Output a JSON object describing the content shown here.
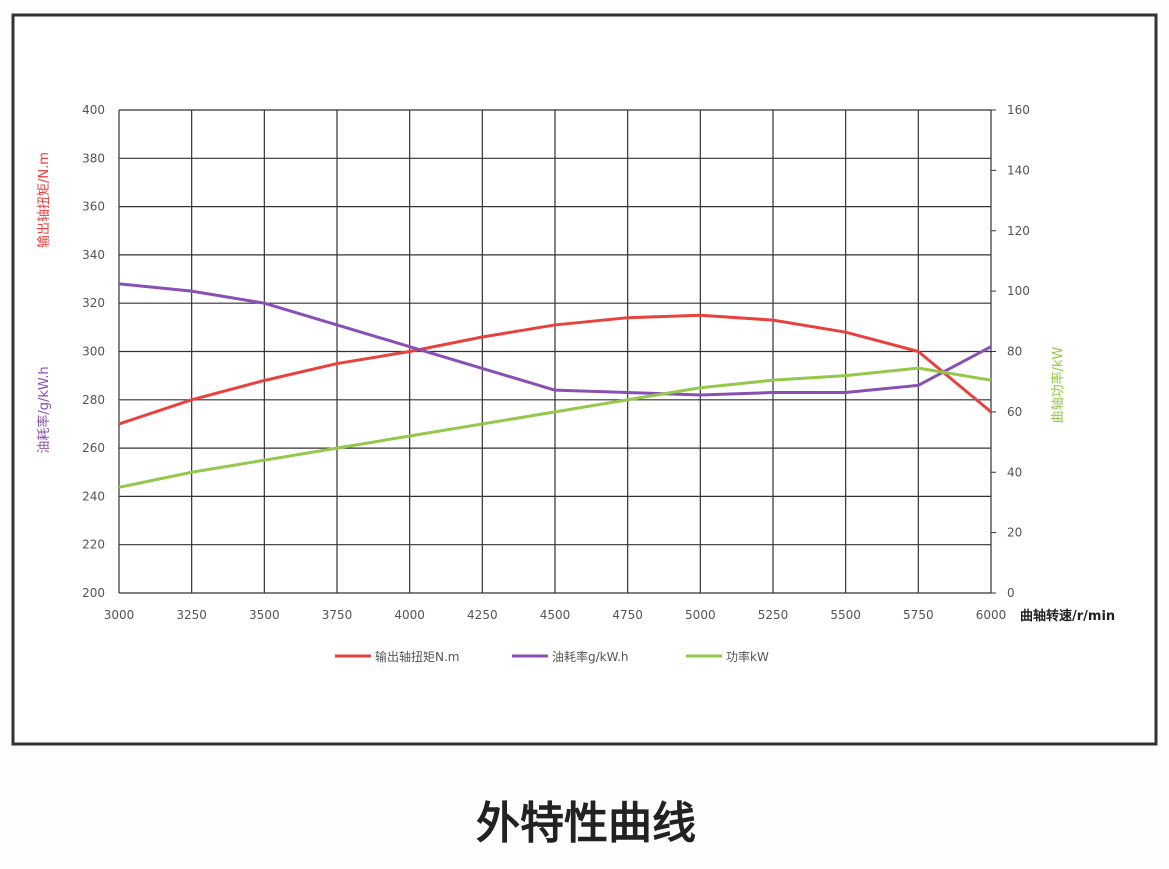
{
  "chart_data": {
    "type": "line",
    "x_label": "曲轴转速/r/min",
    "y_labels": [
      "输出轴扭矩/N.m",
      "油耗率/g/kW.h"
    ],
    "y2_label": "曲轴功率/kW",
    "caption": "外特性曲线",
    "x": [
      3000,
      3250,
      3500,
      3750,
      4000,
      4250,
      4500,
      4750,
      5000,
      5250,
      5500,
      5750,
      6000
    ],
    "series": [
      {
        "name": "输出轴扭矩N.m",
        "color": "#e8423f",
        "values": [
          270,
          280,
          288,
          295,
          300,
          306,
          311,
          314,
          315,
          313,
          308,
          300,
          275
        ]
      },
      {
        "name": "油耗率g/kW.h",
        "color": "#8a4fb3",
        "values": [
          328,
          325,
          320,
          311,
          302,
          293,
          284,
          283,
          282,
          283,
          283,
          286,
          302
        ]
      },
      {
        "name": "功率kW",
        "color": "#94c84b",
        "axis": "y2",
        "values": [
          35,
          40,
          44,
          48,
          52,
          56,
          60,
          64,
          68,
          70.5,
          72,
          74.5,
          70.5
        ]
      }
    ],
    "xlim": [
      3000,
      6000
    ],
    "xticks": [
      3000,
      3250,
      3500,
      3750,
      4000,
      4250,
      4500,
      4750,
      5000,
      5250,
      5500,
      5750,
      6000
    ],
    "ylim": [
      200,
      400
    ],
    "yticks": [
      200,
      220,
      240,
      260,
      280,
      300,
      320,
      340,
      360,
      380,
      400
    ],
    "y2lim": [
      0,
      160
    ],
    "y2ticks": [
      0,
      20,
      40,
      60,
      80,
      100,
      120,
      140,
      160
    ],
    "grid": true
  }
}
